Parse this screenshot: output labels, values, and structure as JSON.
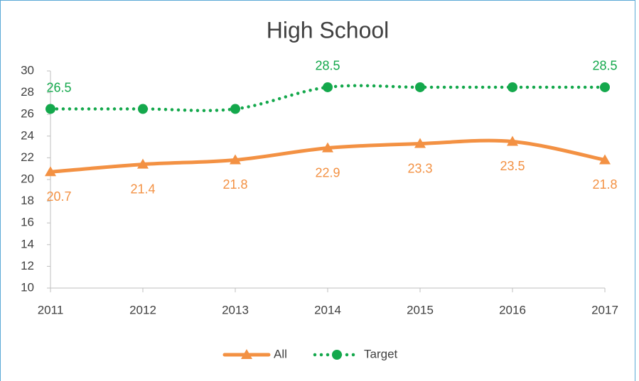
{
  "chart_data": {
    "type": "line",
    "title": "High School",
    "smooth": true,
    "categories": [
      "2011",
      "2012",
      "2013",
      "2014",
      "2015",
      "2016",
      "2017"
    ],
    "ylim": [
      10,
      30
    ],
    "yticks": [
      10,
      12,
      14,
      16,
      18,
      20,
      22,
      24,
      26,
      28,
      30
    ],
    "grid": false,
    "legend": "bottom",
    "series": [
      {
        "name": "All",
        "color": "#f39143",
        "style": "solid",
        "marker": "triangle",
        "values": [
          20.7,
          21.4,
          21.8,
          22.9,
          23.3,
          23.5,
          21.8
        ],
        "label_position": "below"
      },
      {
        "name": "Target",
        "color": "#14a84c",
        "style": "dotted",
        "marker": "circle",
        "values": [
          26.5,
          26.5,
          26.5,
          28.5,
          28.5,
          28.5,
          28.5
        ],
        "value_labels": [
          "26.5",
          null,
          null,
          "28.5",
          null,
          null,
          "28.5"
        ],
        "label_position": "above"
      }
    ]
  }
}
